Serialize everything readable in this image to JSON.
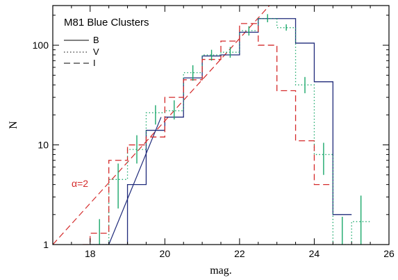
{
  "chart_data": {
    "type": "line",
    "title": "M81 Blue Clusters",
    "xlabel": "mag.",
    "ylabel": "N",
    "xlim": [
      17,
      26
    ],
    "ylim": [
      1,
      250
    ],
    "yscale": "log",
    "xticks": [
      18,
      20,
      22,
      24,
      26
    ],
    "yticks": [
      {
        "value": 1,
        "label": "1"
      },
      {
        "value": 10,
        "label": "10"
      },
      {
        "value": 100,
        "label": "100"
      }
    ],
    "legend": {
      "position": "top-left",
      "entries": [
        {
          "name": "B",
          "style": "solid",
          "color": "#1f2a7a"
        },
        {
          "name": "V",
          "style": "dotted",
          "color": "#1aa86a"
        },
        {
          "name": "I",
          "style": "dashed",
          "color": "#d42a2a"
        }
      ]
    },
    "series": [
      {
        "name": "B",
        "style": "solid",
        "color": "#1f2a7a",
        "edges": [
          18.0,
          18.5,
          19.0,
          19.5,
          20.0,
          20.5,
          21.0,
          21.5,
          22.0,
          22.5,
          23.0,
          23.5,
          24.0,
          24.5,
          25.0
        ],
        "values": [
          1,
          1,
          4,
          14,
          19,
          47,
          78,
          80,
          135,
          185,
          185,
          105,
          43,
          2
        ]
      },
      {
        "name": "V",
        "style": "dotted",
        "color": "#1aa86a",
        "edges": [
          18.0,
          18.5,
          19.0,
          19.5,
          20.0,
          20.5,
          21.0,
          21.5,
          22.0,
          22.5,
          23.0,
          23.5,
          24.0,
          24.5,
          25.0,
          25.5
        ],
        "values": [
          1,
          4.5,
          9,
          21,
          22,
          53,
          80,
          85,
          140,
          185,
          150,
          40,
          8,
          1,
          1.7
        ]
      },
      {
        "name": "I",
        "style": "dashed",
        "color": "#d42a2a",
        "edges": [
          17.8,
          18.0,
          18.5,
          19.0,
          19.5,
          20.0,
          20.5,
          21.0,
          21.5,
          22.0,
          22.5,
          23.0,
          23.5,
          24.0,
          24.5
        ],
        "values": [
          1,
          1.3,
          7,
          10,
          12,
          30,
          45,
          72,
          110,
          165,
          100,
          35,
          11,
          4
        ]
      }
    ],
    "error_bars": [
      {
        "x": 18.25,
        "lo": 1.0,
        "hi": 1.8
      },
      {
        "x": 18.75,
        "lo": 2.3,
        "hi": 6.5
      },
      {
        "x": 19.25,
        "lo": 6.5,
        "hi": 12.5
      },
      {
        "x": 19.75,
        "lo": 16,
        "hi": 25
      },
      {
        "x": 20.25,
        "lo": 18,
        "hi": 28
      },
      {
        "x": 20.75,
        "lo": 44,
        "hi": 63
      },
      {
        "x": 21.25,
        "lo": 70,
        "hi": 90
      },
      {
        "x": 21.75,
        "lo": 75,
        "hi": 96
      },
      {
        "x": 22.25,
        "lo": 125,
        "hi": 155
      },
      {
        "x": 22.75,
        "lo": 170,
        "hi": 205
      },
      {
        "x": 23.25,
        "lo": 140,
        "hi": 162
      },
      {
        "x": 23.75,
        "lo": 33,
        "hi": 48
      },
      {
        "x": 24.25,
        "lo": 5,
        "hi": 10.5
      },
      {
        "x": 24.75,
        "lo": 1,
        "hi": 1.9
      },
      {
        "x": 25.25,
        "lo": 1,
        "hi": 3.1
      }
    ],
    "reference_lines": [
      {
        "label": "α=2",
        "color": "#d42a2a",
        "style": "dashed",
        "x": [
          17.0,
          22.8
        ],
        "y": [
          1.0,
          250
        ]
      },
      {
        "label": "",
        "color": "#1f2a7a",
        "style": "solid",
        "x": [
          18.5,
          19.9
        ],
        "y": [
          1.0,
          19
        ]
      }
    ],
    "annotation": "α=2"
  }
}
